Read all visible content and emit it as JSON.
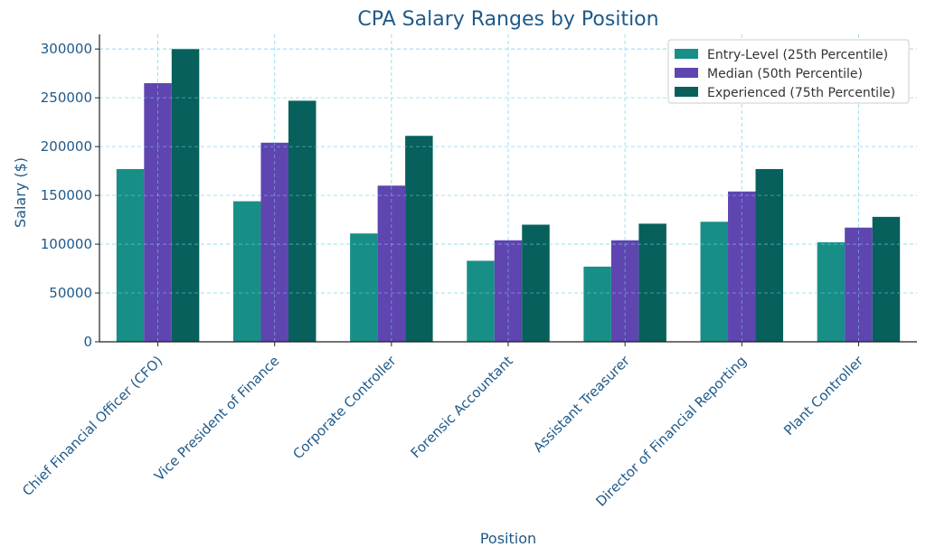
{
  "chart_data": {
    "type": "bar",
    "title": "CPA Salary Ranges by Position",
    "xlabel": "Position",
    "ylabel": "Salary ($)",
    "ylim": [
      0,
      315000
    ],
    "yticks": [
      0,
      50000,
      100000,
      150000,
      200000,
      250000,
      300000
    ],
    "grid": true,
    "legend_position": "top-right",
    "categories": [
      "Chief Financial Officer (CFO)",
      "Vice President of Finance",
      "Corporate Controller",
      "Forensic Accountant",
      "Assistant Treasurer",
      "Director of Financial Reporting",
      "Plant Controller"
    ],
    "series": [
      {
        "name": "Entry-Level (25th Percentile)",
        "color": "#178f87",
        "values": [
          177000,
          144000,
          111000,
          83000,
          77000,
          123000,
          102000
        ]
      },
      {
        "name": "Median (50th Percentile)",
        "color": "#5e45b0",
        "values": [
          265000,
          204000,
          160000,
          104000,
          104000,
          154000,
          117000
        ]
      },
      {
        "name": "Experienced (75th Percentile)",
        "color": "#07605b",
        "values": [
          300000,
          247000,
          211000,
          120000,
          121000,
          177000,
          128000
        ]
      }
    ]
  }
}
